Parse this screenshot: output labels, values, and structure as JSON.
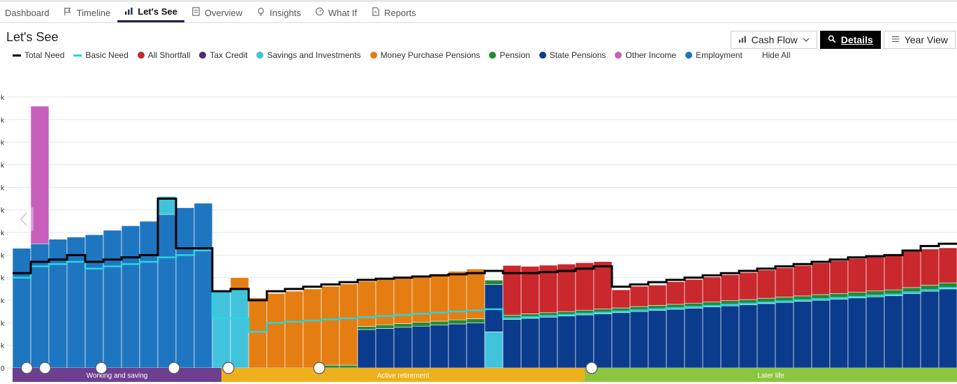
{
  "tabs": [
    {
      "label": "Dashboard",
      "icon": "none",
      "active": false
    },
    {
      "label": "Timeline",
      "icon": "flag-icon",
      "active": false
    },
    {
      "label": "Let's See",
      "icon": "bar-chart-icon",
      "active": true
    },
    {
      "label": "Overview",
      "icon": "document-icon",
      "active": false
    },
    {
      "label": "Insights",
      "icon": "lightbulb-icon",
      "active": false
    },
    {
      "label": "What If",
      "icon": "gauge-icon",
      "active": false
    },
    {
      "label": "Reports",
      "icon": "report-icon",
      "active": false
    }
  ],
  "page_title": "Let's See",
  "toolbar": {
    "cashflow_label": "Cash Flow",
    "details_label": "Details",
    "yearview_label": "Year View"
  },
  "legend": [
    {
      "label": "Total Need",
      "color": "#000000",
      "shape": "line"
    },
    {
      "label": "Basic Need",
      "color": "#2ad4e0",
      "shape": "line"
    },
    {
      "label": "All Shortfall",
      "color": "#c9282d",
      "shape": "dot"
    },
    {
      "label": "Tax Credit",
      "color": "#4b2a7b",
      "shape": "dot"
    },
    {
      "label": "Savings and Investments",
      "color": "#41c3dc",
      "shape": "dot"
    },
    {
      "label": "Money Purchase Pensions",
      "color": "#e57e12",
      "shape": "dot"
    },
    {
      "label": "Pension",
      "color": "#238a36",
      "shape": "dot"
    },
    {
      "label": "State Pensions",
      "color": "#0b3b8c",
      "shape": "dot"
    },
    {
      "label": "Other Income",
      "color": "#c85fbd",
      "shape": "dot"
    },
    {
      "label": "Employment",
      "color": "#1f76c0",
      "shape": "dot"
    }
  ],
  "hide_all_label": "Hide All",
  "chart_data": {
    "type": "bar",
    "stacked": true,
    "y_tick_labels": [
      "0",
      "k",
      "k",
      "k",
      "k",
      "k",
      "k",
      "k",
      "k",
      "k",
      "k",
      "k",
      "k"
    ],
    "ylim": [
      0,
      12
    ],
    "series": [
      {
        "name": "Employment",
        "color": "#1f76c0",
        "values": [
          5.3,
          5.5,
          5.7,
          5.8,
          5.9,
          6.1,
          6.3,
          6.5,
          6.8,
          7.1,
          7.3,
          0,
          0,
          0,
          0,
          0,
          0,
          0,
          0,
          0,
          0,
          0,
          0,
          0,
          0,
          0,
          0,
          0,
          0,
          0,
          0,
          0,
          0,
          0,
          0,
          0,
          0,
          0,
          0,
          0,
          0,
          0,
          0,
          0,
          0,
          0,
          0,
          0,
          0,
          0,
          0,
          0
        ]
      },
      {
        "name": "Other Income",
        "color": "#c85fbd",
        "values": [
          0,
          6.1,
          0,
          0,
          0,
          0,
          0,
          0,
          0,
          0,
          0,
          0,
          0,
          0,
          0,
          0,
          0,
          0,
          0,
          0,
          0,
          0,
          0,
          0,
          0,
          0,
          0,
          0,
          0,
          0,
          0,
          0,
          0,
          0,
          0,
          0,
          0,
          0,
          0,
          0,
          0,
          0,
          0,
          0,
          0,
          0,
          0,
          0,
          0,
          0,
          0,
          0
        ]
      },
      {
        "name": "Savings and Investments",
        "color": "#41c3dc",
        "values": [
          0,
          0,
          0,
          0,
          0,
          0,
          0,
          0,
          0.8,
          0,
          0,
          3.4,
          3.5,
          0,
          0,
          0,
          0,
          0,
          0,
          0,
          0,
          0,
          0,
          0,
          0,
          0,
          1.6,
          0,
          0,
          0,
          0,
          0,
          0,
          0,
          0,
          0,
          0,
          0,
          0,
          0,
          0,
          0,
          0,
          0,
          0,
          0,
          0,
          0,
          0,
          0,
          0,
          0
        ]
      },
      {
        "name": "State Pensions",
        "color": "#0b3b8c",
        "values": [
          0,
          0,
          0,
          0,
          0,
          0,
          0,
          0,
          0,
          0,
          0,
          0,
          0,
          0,
          0,
          0,
          0,
          0,
          0,
          1.7,
          1.75,
          1.8,
          1.85,
          1.9,
          1.95,
          2.0,
          2.1,
          2.15,
          2.2,
          2.25,
          2.3,
          2.35,
          2.4,
          2.45,
          2.5,
          2.55,
          2.6,
          2.65,
          2.7,
          2.75,
          2.8,
          2.85,
          2.9,
          2.95,
          3.0,
          3.05,
          3.1,
          3.15,
          3.2,
          3.3,
          3.4,
          3.5
        ]
      },
      {
        "name": "Pension",
        "color": "#238a36",
        "values": [
          0,
          0,
          0,
          0,
          0,
          0,
          0,
          0,
          0,
          0,
          0,
          0,
          0,
          0,
          0,
          0,
          0,
          0.12,
          0.12,
          0.14,
          0.16,
          0.16,
          0.17,
          0.17,
          0.18,
          0.18,
          0.19,
          0.19,
          0.2,
          0.2,
          0.2,
          0.21,
          0.21,
          0.21,
          0.22,
          0.22,
          0.22,
          0.22,
          0.23,
          0.23,
          0.23,
          0.24,
          0.24,
          0.24,
          0.25,
          0.25,
          0.25,
          0.26,
          0.26,
          0.26,
          0.27,
          0.27
        ]
      },
      {
        "name": "Money Purchase Pensions",
        "color": "#e57e12",
        "values": [
          0,
          0,
          0,
          0,
          0,
          0,
          0,
          0,
          0,
          0,
          0,
          0,
          0.5,
          3.1,
          3.3,
          3.4,
          3.5,
          3.5,
          3.6,
          2.0,
          2.0,
          2.05,
          2.05,
          2.1,
          2.15,
          2.2,
          0,
          0,
          0,
          0,
          0,
          0,
          0,
          0,
          0,
          0,
          0,
          0,
          0,
          0,
          0,
          0,
          0,
          0,
          0,
          0,
          0,
          0,
          0,
          0,
          0,
          0
        ]
      },
      {
        "name": "All Shortfall",
        "color": "#c9282d",
        "values": [
          0,
          0,
          0,
          0,
          0,
          0,
          0,
          0,
          0,
          0,
          0,
          0,
          0,
          0,
          0,
          0,
          0,
          0,
          0,
          0,
          0,
          0,
          0,
          0,
          0,
          0,
          0,
          2.2,
          2.1,
          2.1,
          2.1,
          2.1,
          2.1,
          0.8,
          0.9,
          0.9,
          1.0,
          1.05,
          1.1,
          1.15,
          1.2,
          1.25,
          1.3,
          1.35,
          1.4,
          1.45,
          1.5,
          1.5,
          1.55,
          1.6,
          1.6,
          1.55
        ]
      },
      {
        "name": "Tax Credit",
        "color": "#4b2a7b",
        "values": [
          0.02,
          0.02,
          0.02,
          0.02,
          0.02,
          0.02,
          0.02,
          0.02,
          0.02,
          0.02,
          0.02,
          0,
          0,
          0,
          0,
          0,
          0,
          0,
          0,
          0,
          0,
          0,
          0,
          0,
          0,
          0,
          0,
          0,
          0,
          0,
          0,
          0,
          0,
          0,
          0,
          0,
          0,
          0,
          0,
          0,
          0,
          0,
          0,
          0,
          0,
          0,
          0,
          0,
          0,
          0,
          0,
          0
        ]
      }
    ],
    "total_need": [
      4.2,
      4.7,
      4.8,
      5.0,
      4.7,
      4.8,
      4.9,
      5.0,
      7.5,
      5.3,
      5.3,
      3.4,
      3.5,
      3.0,
      3.4,
      3.5,
      3.6,
      3.7,
      3.8,
      3.9,
      3.95,
      4.0,
      4.05,
      4.1,
      4.15,
      4.2,
      4.3,
      4.2,
      4.2,
      4.25,
      4.3,
      4.4,
      4.5,
      3.6,
      3.7,
      3.8,
      3.9,
      4.0,
      4.1,
      4.2,
      4.3,
      4.4,
      4.5,
      4.6,
      4.7,
      4.8,
      4.9,
      4.95,
      5.0,
      5.2,
      5.4,
      5.5
    ],
    "basic_need": [
      4.0,
      4.5,
      4.6,
      4.7,
      4.4,
      4.5,
      4.6,
      4.7,
      4.9,
      5.0,
      5.2,
      2.2,
      2.2,
      1.6,
      2.0,
      2.05,
      2.1,
      2.15,
      2.2,
      2.25,
      2.3,
      2.35,
      2.4,
      2.45,
      2.5,
      2.55,
      2.6,
      2.2,
      2.25,
      2.3,
      2.35,
      2.4,
      2.45,
      2.5,
      2.55,
      2.6,
      2.65,
      2.7,
      2.75,
      2.8,
      2.85,
      2.9,
      2.95,
      3.0,
      3.05,
      3.1,
      3.15,
      3.2,
      3.25,
      3.35,
      3.45,
      3.55
    ],
    "phases": [
      {
        "label": "Working and saving",
        "color": "#6f3f8f",
        "start": 0,
        "end": 11.5
      },
      {
        "label": "Active retirement",
        "color": "#eeb11e",
        "start": 11.5,
        "end": 31.5
      },
      {
        "label": "Later life",
        "color": "#8cc641",
        "start": 31.5,
        "end": 52
      }
    ],
    "event_icons": [
      {
        "name": "play-icon",
        "index": 0.4
      },
      {
        "name": "zoom-icon",
        "index": 1.4
      },
      {
        "name": "bandage-icon",
        "index": 4.5
      },
      {
        "name": "house-icon",
        "index": 8.5
      },
      {
        "name": "zoom-icon",
        "index": 11.5
      },
      {
        "name": "calendar-icon",
        "index": 16.5
      },
      {
        "name": "calendar-icon",
        "index": 31.5
      }
    ]
  }
}
